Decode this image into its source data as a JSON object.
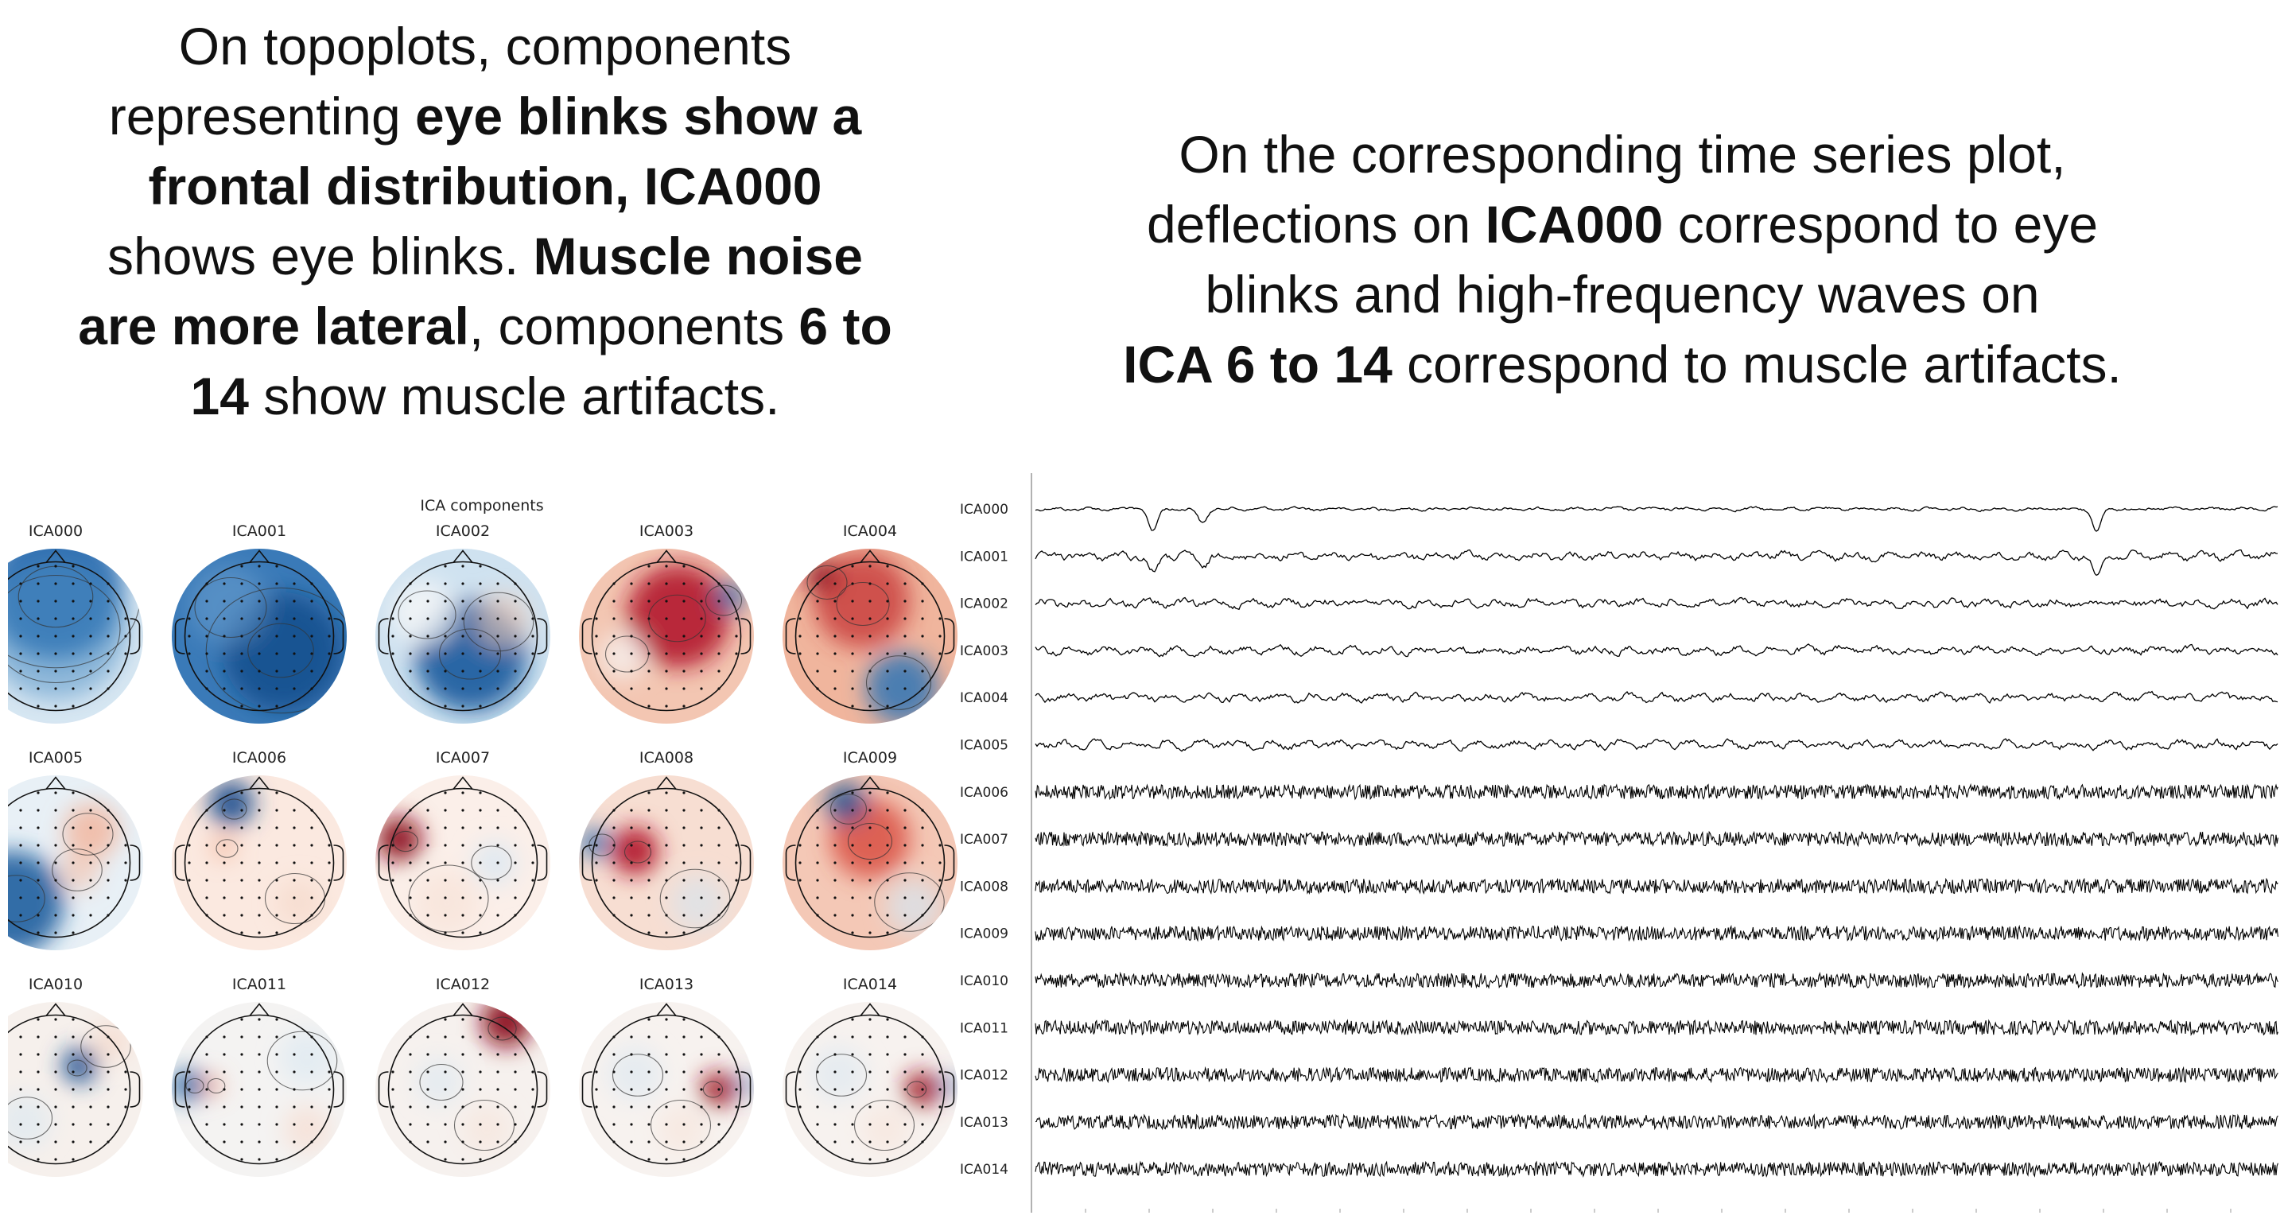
{
  "caption_left": {
    "l1": "On topoplots, components",
    "l2a": "representing ",
    "l2b": "eye blinks show a",
    "l3": "frontal distribution, ICA000",
    "l4a": "shows eye blinks. ",
    "l4b": "Muscle noise",
    "l5a": "are more lateral",
    "l5b": ", components ",
    "l5c": "6 to",
    "l6a": "14",
    "l6b": " show muscle artifacts."
  },
  "caption_right": {
    "l1": "On the corresponding time series plot,",
    "l2a": "deflections on ",
    "l2b": "ICA000",
    "l2c": " correspond to eye",
    "l3": "blinks and high-frequency waves on",
    "l4a": "ICA 6 to 14",
    "l4b": " correspond to muscle artifacts."
  },
  "topoplot": {
    "title": "ICA components",
    "components": [
      {
        "label": "ICA000",
        "pattern": "frontal-blue"
      },
      {
        "label": "ICA001",
        "pattern": "global-blue"
      },
      {
        "label": "ICA002",
        "pattern": "posterior-blue"
      },
      {
        "label": "ICA003",
        "pattern": "central-red"
      },
      {
        "label": "ICA004",
        "pattern": "frontal-red"
      },
      {
        "label": "ICA005",
        "pattern": "left-blue"
      },
      {
        "label": "ICA006",
        "pattern": "left-frontal-focal"
      },
      {
        "label": "ICA007",
        "pattern": "left-frontal-red"
      },
      {
        "label": "ICA008",
        "pattern": "left-red"
      },
      {
        "label": "ICA009",
        "pattern": "frontal-red-mixed"
      },
      {
        "label": "ICA010",
        "pattern": "right-central-blue"
      },
      {
        "label": "ICA011",
        "pattern": "left-temporal"
      },
      {
        "label": "ICA012",
        "pattern": "right-frontal-red"
      },
      {
        "label": "ICA013",
        "pattern": "right-temporal-red"
      },
      {
        "label": "ICA014",
        "pattern": "right-temporal-red"
      }
    ]
  },
  "timeseries": {
    "channels": [
      "ICA000",
      "ICA001",
      "ICA002",
      "ICA003",
      "ICA004",
      "ICA005",
      "ICA006",
      "ICA007",
      "ICA008",
      "ICA009",
      "ICA010",
      "ICA011",
      "ICA012",
      "ICA013",
      "ICA014"
    ]
  },
  "colors": {
    "blue": "#2166ac",
    "red": "#b2182b",
    "trace": "#000000"
  }
}
